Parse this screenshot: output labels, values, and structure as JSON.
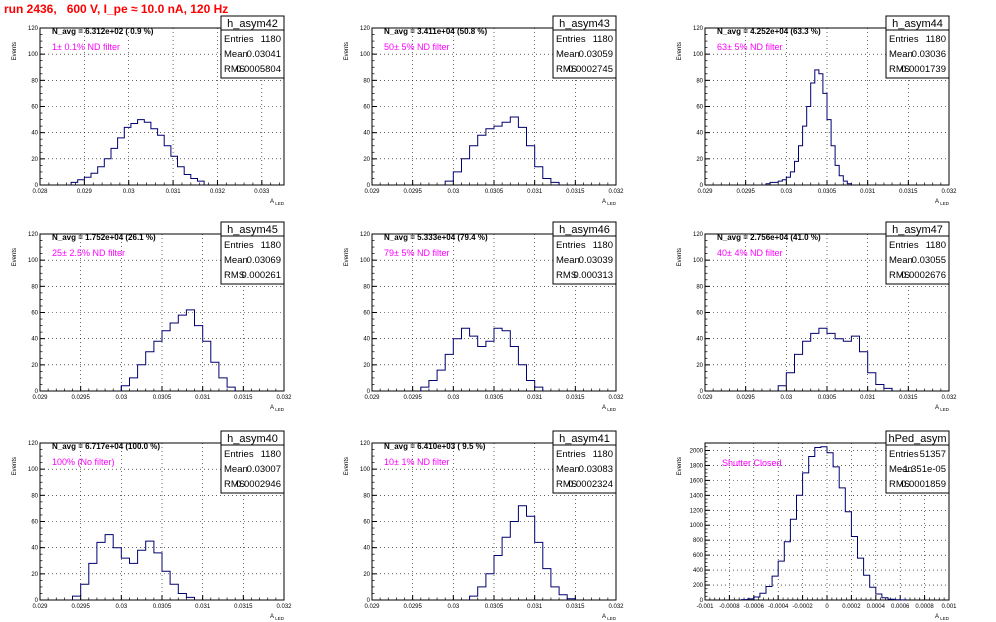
{
  "run_title": "run 2436,   600 V, I_pe ≈ 10.0 nA, 120 Hz",
  "axis_ylabel": "Events",
  "axis_xlabel": "A",
  "axis_xlabel_sub": "LED",
  "stat_labels": {
    "entries": "Entries",
    "mean": "Mean",
    "rms": "RMS"
  },
  "colors": {
    "histogram": "#00006e",
    "annotation": "#ff00ff",
    "run_title": "#ff0000"
  },
  "chart_data": [
    {
      "type": "bar",
      "name": "h_asym42",
      "navg": "N_avg = 6.312e+02 ( 0.9 %)",
      "filter": "1± 0.1% ND filter",
      "entries": "1180",
      "mean": "0.03041",
      "rms": "0.0005804",
      "xlim": [
        0.028,
        0.0335
      ],
      "ylim": [
        0,
        120
      ],
      "xticks": [
        "0.028",
        "0.029",
        "0.03",
        "0.031",
        "0.032",
        "0.033"
      ],
      "xtick_values": [
        0.028,
        0.029,
        0.03,
        0.031,
        0.032,
        0.033
      ],
      "yticks": [
        "0",
        "20",
        "40",
        "60",
        "80",
        "100",
        "120"
      ],
      "ytick_values": [
        0,
        20,
        40,
        60,
        80,
        100,
        120
      ],
      "bins": [
        0.0287,
        0.02885,
        0.029,
        0.02915,
        0.0293,
        0.02945,
        0.0296,
        0.02975,
        0.0299,
        0.03005,
        0.0302,
        0.03035,
        0.0305,
        0.03065,
        0.0308,
        0.03095,
        0.0311,
        0.03125,
        0.0314,
        0.03155,
        0.0317
      ],
      "counts": [
        2,
        4,
        6,
        9,
        14,
        20,
        28,
        36,
        44,
        47,
        50,
        48,
        43,
        38,
        30,
        22,
        14,
        8,
        5,
        3
      ]
    },
    {
      "type": "bar",
      "name": "h_asym43",
      "navg": "N_avg = 3.411e+04 (50.8 %)",
      "filter": "50± 5% ND filter",
      "entries": "1180",
      "mean": "0.03059",
      "rms": "0.0002745",
      "xlim": [
        0.029,
        0.032
      ],
      "ylim": [
        0,
        120
      ],
      "xticks": [
        "0.029",
        "0.0295",
        "0.03",
        "0.0305",
        "0.031",
        "0.0315",
        "0.032"
      ],
      "xtick_values": [
        0.029,
        0.0295,
        0.03,
        0.0305,
        0.031,
        0.0315,
        0.032
      ],
      "yticks": [
        "0",
        "20",
        "40",
        "60",
        "80",
        "100",
        "120"
      ],
      "ytick_values": [
        0,
        20,
        40,
        60,
        80,
        100,
        120
      ],
      "bins": [
        0.0299,
        0.03,
        0.0301,
        0.0302,
        0.0303,
        0.0304,
        0.0305,
        0.0306,
        0.0307,
        0.0308,
        0.0309,
        0.031,
        0.0311,
        0.0312,
        0.0313
      ],
      "counts": [
        3,
        10,
        20,
        30,
        38,
        43,
        45,
        48,
        52,
        44,
        30,
        14,
        5,
        2
      ]
    },
    {
      "type": "bar",
      "name": "h_asym44",
      "navg": "N_avg = 4.252e+04 (63.3 %)",
      "filter": "63± 5% ND filter",
      "entries": "1180",
      "mean": "0.03036",
      "rms": "0.0001739",
      "xlim": [
        0.029,
        0.032
      ],
      "ylim": [
        0,
        120
      ],
      "xticks": [
        "0.029",
        "0.0295",
        "0.03",
        "0.0305",
        "0.031",
        "0.0315",
        "0.032"
      ],
      "xtick_values": [
        0.029,
        0.0295,
        0.03,
        0.0305,
        0.031,
        0.0315,
        0.032
      ],
      "yticks": [
        "0",
        "20",
        "40",
        "60",
        "80",
        "100",
        "120"
      ],
      "ytick_values": [
        0,
        20,
        40,
        60,
        80,
        100,
        120
      ],
      "bins": [
        0.02975,
        0.0298,
        0.02985,
        0.0299,
        0.02995,
        0.03,
        0.03005,
        0.0301,
        0.03015,
        0.0302,
        0.03025,
        0.0303,
        0.03035,
        0.0304,
        0.03045,
        0.0305,
        0.03055,
        0.0306,
        0.03065,
        0.0307,
        0.03075,
        0.0308
      ],
      "counts": [
        1,
        2,
        2,
        3,
        4,
        6,
        10,
        18,
        30,
        45,
        60,
        78,
        88,
        85,
        70,
        50,
        30,
        15,
        7,
        3,
        1
      ]
    },
    {
      "type": "bar",
      "name": "h_asym45",
      "navg": "N_avg = 1.752e+04 (26.1 %)",
      "filter": "25± 2.5% ND filter",
      "entries": "1180",
      "mean": "0.03069",
      "rms": "0.000261",
      "xlim": [
        0.029,
        0.032
      ],
      "ylim": [
        0,
        120
      ],
      "xticks": [
        "0.029",
        "0.0295",
        "0.03",
        "0.0305",
        "0.031",
        "0.0315",
        "0.032"
      ],
      "xtick_values": [
        0.029,
        0.0295,
        0.03,
        0.0305,
        0.031,
        0.0315,
        0.032
      ],
      "yticks": [
        "0",
        "20",
        "40",
        "60",
        "80",
        "100",
        "120"
      ],
      "ytick_values": [
        0,
        20,
        40,
        60,
        80,
        100,
        120
      ],
      "bins": [
        0.03,
        0.0301,
        0.0302,
        0.0303,
        0.0304,
        0.0305,
        0.0306,
        0.0307,
        0.0308,
        0.0309,
        0.031,
        0.0311,
        0.0312,
        0.0313,
        0.0314
      ],
      "counts": [
        4,
        10,
        20,
        30,
        38,
        46,
        52,
        58,
        62,
        50,
        38,
        22,
        10,
        3
      ]
    },
    {
      "type": "bar",
      "name": "h_asym46",
      "navg": "N_avg = 5.333e+04 (79.4 %)",
      "filter": "79± 5% ND filter",
      "entries": "1180",
      "mean": "0.03039",
      "rms": "0.000313",
      "xlim": [
        0.029,
        0.032
      ],
      "ylim": [
        0,
        120
      ],
      "xticks": [
        "0.029",
        "0.0295",
        "0.03",
        "0.0305",
        "0.031",
        "0.0315",
        "0.032"
      ],
      "xtick_values": [
        0.029,
        0.0295,
        0.03,
        0.0305,
        0.031,
        0.0315,
        0.032
      ],
      "yticks": [
        "0",
        "20",
        "40",
        "60",
        "80",
        "100",
        "120"
      ],
      "ytick_values": [
        0,
        20,
        40,
        60,
        80,
        100,
        120
      ],
      "bins": [
        0.0296,
        0.0297,
        0.0298,
        0.0299,
        0.03,
        0.0301,
        0.0302,
        0.0303,
        0.0304,
        0.0305,
        0.0306,
        0.0307,
        0.0308,
        0.0309,
        0.031,
        0.0311
      ],
      "counts": [
        3,
        8,
        16,
        28,
        40,
        48,
        42,
        34,
        38,
        48,
        46,
        34,
        20,
        8,
        3
      ]
    },
    {
      "type": "bar",
      "name": "h_asym47",
      "navg": "N_avg = 2.756e+04 (41.0 %)",
      "filter": "40± 4% ND filter",
      "entries": "1180",
      "mean": "0.03055",
      "rms": "0.0002676",
      "xlim": [
        0.029,
        0.032
      ],
      "ylim": [
        0,
        120
      ],
      "xticks": [
        "0.029",
        "0.0295",
        "0.03",
        "0.0305",
        "0.031",
        "0.0315",
        "0.032"
      ],
      "xtick_values": [
        0.029,
        0.0295,
        0.03,
        0.0305,
        0.031,
        0.0315,
        0.032
      ],
      "yticks": [
        "0",
        "20",
        "40",
        "60",
        "80",
        "100",
        "120"
      ],
      "ytick_values": [
        0,
        20,
        40,
        60,
        80,
        100,
        120
      ],
      "bins": [
        0.0299,
        0.03,
        0.0301,
        0.0302,
        0.0303,
        0.0304,
        0.0305,
        0.0306,
        0.0307,
        0.0308,
        0.0309,
        0.031,
        0.0311,
        0.0312,
        0.0313
      ],
      "counts": [
        4,
        14,
        28,
        38,
        44,
        48,
        44,
        40,
        38,
        42,
        30,
        14,
        5,
        2
      ]
    },
    {
      "type": "bar",
      "name": "h_asym40",
      "navg": "N_avg = 6.717e+04 (100.0 %)",
      "filter": "100% (No filter)",
      "entries": "1180",
      "mean": "0.03007",
      "rms": "0.0002946",
      "xlim": [
        0.029,
        0.032
      ],
      "ylim": [
        0,
        120
      ],
      "xticks": [
        "0.029",
        "0.0295",
        "0.03",
        "0.0305",
        "0.031",
        "0.0315",
        "0.032"
      ],
      "xtick_values": [
        0.029,
        0.0295,
        0.03,
        0.0305,
        0.031,
        0.0315,
        0.032
      ],
      "yticks": [
        "0",
        "20",
        "40",
        "60",
        "80",
        "100",
        "120"
      ],
      "ytick_values": [
        0,
        20,
        40,
        60,
        80,
        100,
        120
      ],
      "bins": [
        0.0294,
        0.0295,
        0.0296,
        0.0297,
        0.0298,
        0.0299,
        0.03,
        0.0301,
        0.0302,
        0.0303,
        0.0304,
        0.0305,
        0.0306,
        0.0307,
        0.0308,
        0.0309
      ],
      "counts": [
        3,
        12,
        28,
        44,
        50,
        40,
        32,
        28,
        38,
        45,
        36,
        22,
        12,
        5,
        2
      ]
    },
    {
      "type": "bar",
      "name": "h_asym41",
      "navg": "N_avg = 6.410e+03 ( 9.5 %)",
      "filter": "10± 1% ND filter",
      "entries": "1180",
      "mean": "0.03083",
      "rms": "0.0002324",
      "xlim": [
        0.029,
        0.032
      ],
      "ylim": [
        0,
        120
      ],
      "xticks": [
        "0.029",
        "0.0295",
        "0.03",
        "0.0305",
        "0.031",
        "0.0315",
        "0.032"
      ],
      "xtick_values": [
        0.029,
        0.0295,
        0.03,
        0.0305,
        0.031,
        0.0315,
        0.032
      ],
      "yticks": [
        "0",
        "20",
        "40",
        "60",
        "80",
        "100",
        "120"
      ],
      "ytick_values": [
        0,
        20,
        40,
        60,
        80,
        100,
        120
      ],
      "bins": [
        0.0302,
        0.0303,
        0.0304,
        0.0305,
        0.0306,
        0.0307,
        0.0308,
        0.0309,
        0.031,
        0.0311,
        0.0312,
        0.0313,
        0.0314,
        0.0315
      ],
      "counts": [
        3,
        10,
        20,
        34,
        48,
        60,
        72,
        64,
        44,
        24,
        10,
        4,
        1
      ]
    },
    {
      "type": "bar",
      "name": "hPed_asym",
      "navg": "",
      "filter": "Shutter Closed",
      "entries": "51357",
      "mean": "-1.351e-05",
      "rms": "0.0001859",
      "xlim": [
        -0.001,
        0.001
      ],
      "ylim": [
        0,
        2100
      ],
      "xticks": [
        "-0.001",
        "-0.0008",
        "-0.0006",
        "-0.0004",
        "-0.0002",
        "0",
        "0.0002",
        "0.0004",
        "0.0006",
        "0.0008",
        "0.001"
      ],
      "xtick_values": [
        -0.001,
        -0.0008,
        -0.0006,
        -0.0004,
        -0.0002,
        0,
        0.0002,
        0.0004,
        0.0006,
        0.0008,
        0.001
      ],
      "yticks": [
        "0",
        "200",
        "400",
        "600",
        "800",
        "1000",
        "1200",
        "1400",
        "1600",
        "1800",
        "2000"
      ],
      "ytick_values": [
        0,
        200,
        400,
        600,
        800,
        1000,
        1200,
        1400,
        1600,
        1800,
        2000
      ],
      "bins": [
        -0.0007,
        -0.00065,
        -0.0006,
        -0.00055,
        -0.0005,
        -0.00045,
        -0.0004,
        -0.00035,
        -0.0003,
        -0.00025,
        -0.0002,
        -0.00015,
        -0.0001,
        -5e-05,
        0,
        5e-05,
        0.0001,
        0.00015,
        0.0002,
        0.00025,
        0.0003,
        0.00035,
        0.0004,
        0.00045,
        0.0005,
        0.00055,
        0.0006,
        0.00065
      ],
      "counts": [
        5,
        15,
        40,
        90,
        180,
        320,
        520,
        780,
        1080,
        1400,
        1700,
        1920,
        2040,
        2050,
        1970,
        1780,
        1500,
        1180,
        850,
        560,
        330,
        170,
        80,
        30,
        10,
        4,
        1
      ]
    }
  ]
}
